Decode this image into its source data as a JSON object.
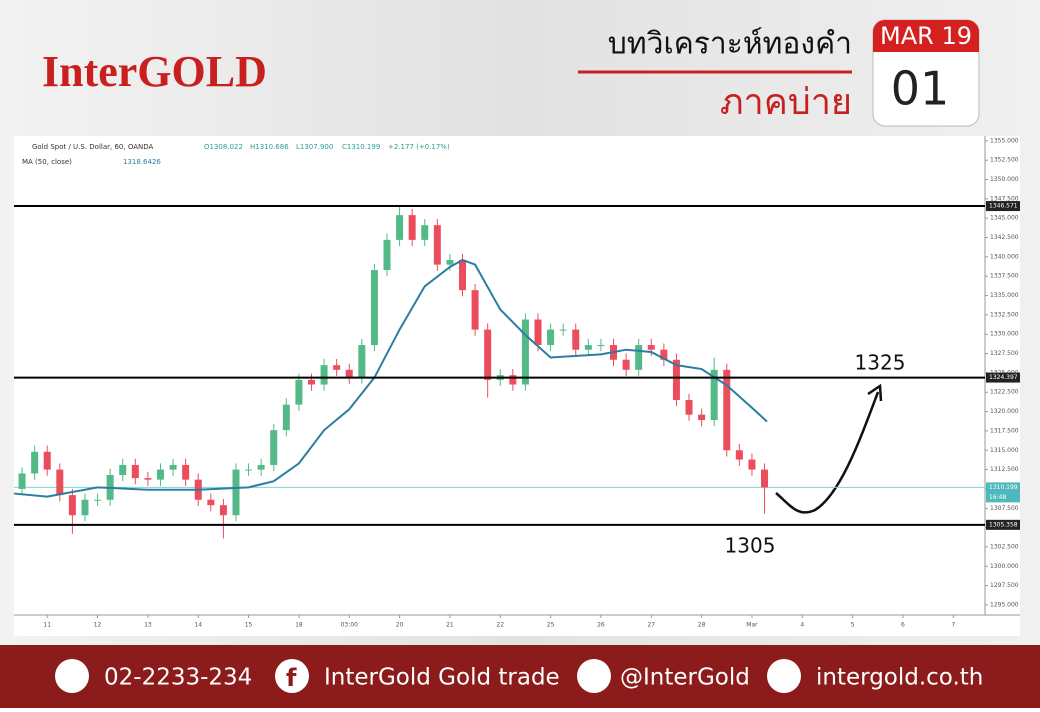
{
  "header": {
    "brand": "InterGOLD",
    "title": "บทวิเคราะห์ทองคำ",
    "subtitle": "ภาคบ่าย",
    "month": "MAR 19",
    "day": "01"
  },
  "chart_data": {
    "type": "candlestick",
    "symbol": "Gold Spot / U.S. Dollar, 60, OANDA",
    "ohlc_info": [
      "O1308.022",
      "H1310.686",
      "L1307.900",
      "C1310.199",
      "+2.177 (+0.17%)"
    ],
    "indicator": "MA (50, close)",
    "indicator_value": "1318.6426",
    "xlim": [
      -0.66,
      18.63
    ],
    "ylim": [
      1293.7,
      1355.5
    ],
    "xticks": [
      {
        "value": 0,
        "label": "11"
      },
      {
        "value": 1,
        "label": "12"
      },
      {
        "value": 2,
        "label": "13"
      },
      {
        "value": 3,
        "label": "14"
      },
      {
        "value": 4,
        "label": "15"
      },
      {
        "value": 5,
        "label": "18"
      },
      {
        "value": 6,
        "label": "03:00"
      },
      {
        "value": 7,
        "label": "20"
      },
      {
        "value": 8,
        "label": "21"
      },
      {
        "value": 9,
        "label": "22"
      },
      {
        "value": 10,
        "label": "25"
      },
      {
        "value": 11,
        "label": "26"
      },
      {
        "value": 12,
        "label": "27"
      },
      {
        "value": 13,
        "label": "28"
      },
      {
        "value": 14,
        "label": "Mar"
      },
      {
        "value": 15,
        "label": "4"
      },
      {
        "value": 16,
        "label": "5"
      },
      {
        "value": 17,
        "label": "6"
      },
      {
        "value": 18,
        "label": "7"
      }
    ],
    "yticks": [
      {
        "value": 1295,
        "label": "1295.000"
      },
      {
        "value": 1297.5,
        "label": "1297.500"
      },
      {
        "value": 1300,
        "label": "1300.000"
      },
      {
        "value": 1302.5,
        "label": "1302.500"
      },
      {
        "value": 1305,
        "label": "1305.000"
      },
      {
        "value": 1307.5,
        "label": "1307.500"
      },
      {
        "value": 1310,
        "label": "1310.000"
      },
      {
        "value": 1312.5,
        "label": "1312.500"
      },
      {
        "value": 1315,
        "label": "1315.000"
      },
      {
        "value": 1317.5,
        "label": "1317.500"
      },
      {
        "value": 1320,
        "label": "1320.000"
      },
      {
        "value": 1322.5,
        "label": "1322.500"
      },
      {
        "value": 1325,
        "label": "1325.000"
      },
      {
        "value": 1327.5,
        "label": "1327.500"
      },
      {
        "value": 1330,
        "label": "1330.000"
      },
      {
        "value": 1332.5,
        "label": "1332.500"
      },
      {
        "value": 1335,
        "label": "1335.000"
      },
      {
        "value": 1337.5,
        "label": "1337.500"
      },
      {
        "value": 1340,
        "label": "1340.000"
      },
      {
        "value": 1342.5,
        "label": "1342.500"
      },
      {
        "value": 1345,
        "label": "1345.000"
      },
      {
        "value": 1347.5,
        "label": "1347.500"
      },
      {
        "value": 1350,
        "label": "1350.000"
      },
      {
        "value": 1352.5,
        "label": "1352.500"
      },
      {
        "value": 1355,
        "label": "1355.000"
      }
    ],
    "up_color": "#53b987",
    "down_color": "#eb4d5c",
    "x": [
      -0.5,
      -0.25,
      0,
      0.25,
      0.5,
      0.75,
      1,
      1.25,
      1.5,
      1.75,
      2,
      2.25,
      2.5,
      2.75,
      3,
      3.25,
      3.5,
      3.75,
      4,
      4.25,
      4.5,
      4.75,
      5,
      5.25,
      5.5,
      5.75,
      6,
      6.25,
      6.5,
      6.75,
      7,
      7.25,
      7.5,
      7.75,
      8,
      8.25,
      8.5,
      8.75,
      9,
      9.25,
      9.5,
      9.75,
      10,
      10.25,
      10.5,
      10.75,
      11,
      11.25,
      11.5,
      11.75,
      12,
      12.25,
      12.5,
      12.75,
      13,
      13.25,
      13.5,
      13.75,
      14,
      14.25
    ],
    "open": [
      1310.0,
      1312.0,
      1314.8,
      1312.5,
      1309.2,
      1306.6,
      1308.6,
      1308.6,
      1311.8,
      1313.1,
      1311.4,
      1311.2,
      1312.5,
      1313.1,
      1311.2,
      1308.6,
      1307.9,
      1306.6,
      1312.5,
      1312.5,
      1313.1,
      1317.6,
      1320.9,
      1324.1,
      1323.5,
      1326.0,
      1325.4,
      1324.4,
      1328.6,
      1338.3,
      1342.2,
      1345.4,
      1342.2,
      1344.1,
      1339.0,
      1339.6,
      1335.7,
      1330.6,
      1324.1,
      1324.7,
      1323.5,
      1331.9,
      1328.6,
      1330.6,
      1330.6,
      1328.0,
      1328.6,
      1328.6,
      1326.7,
      1325.4,
      1328.6,
      1328.0,
      1326.7,
      1321.5,
      1319.6,
      1318.9,
      1325.4,
      1315.0,
      1313.8,
      1312.5
    ],
    "high": [
      1312.8,
      1315.6,
      1315.6,
      1313.3,
      1310.0,
      1309.4,
      1309.4,
      1312.6,
      1313.9,
      1313.9,
      1312.2,
      1313.3,
      1313.9,
      1313.9,
      1312.0,
      1309.4,
      1308.7,
      1313.3,
      1313.3,
      1313.9,
      1318.4,
      1321.7,
      1324.9,
      1324.9,
      1326.8,
      1326.8,
      1326.2,
      1329.4,
      1339.1,
      1343.0,
      1346.6,
      1346.2,
      1344.9,
      1344.9,
      1340.4,
      1340.4,
      1336.5,
      1331.4,
      1325.5,
      1325.5,
      1332.7,
      1332.7,
      1331.4,
      1331.4,
      1331.4,
      1329.4,
      1329.4,
      1329.4,
      1327.5,
      1329.4,
      1329.4,
      1328.8,
      1327.5,
      1322.3,
      1320.4,
      1327.0,
      1326.2,
      1315.8,
      1314.6,
      1313.3
    ],
    "low": [
      1309.2,
      1311.2,
      1311.7,
      1308.4,
      1304.2,
      1305.8,
      1307.8,
      1307.8,
      1311.0,
      1310.6,
      1310.4,
      1310.4,
      1311.7,
      1310.4,
      1307.8,
      1307.1,
      1303.6,
      1305.8,
      1311.7,
      1311.7,
      1312.3,
      1316.8,
      1320.1,
      1322.7,
      1322.7,
      1324.6,
      1323.6,
      1323.6,
      1327.8,
      1337.5,
      1341.4,
      1341.4,
      1341.4,
      1338.2,
      1338.2,
      1334.9,
      1329.8,
      1321.8,
      1323.3,
      1322.7,
      1322.7,
      1327.8,
      1327.8,
      1329.8,
      1327.2,
      1327.2,
      1327.8,
      1325.9,
      1324.6,
      1324.6,
      1327.2,
      1325.9,
      1320.7,
      1318.8,
      1318.1,
      1318.1,
      1314.2,
      1313.0,
      1311.7,
      1306.8
    ],
    "close": [
      1312.0,
      1314.8,
      1312.5,
      1309.2,
      1306.6,
      1308.6,
      1308.6,
      1311.8,
      1313.1,
      1311.4,
      1311.2,
      1312.5,
      1313.1,
      1311.2,
      1308.6,
      1307.9,
      1306.6,
      1312.5,
      1312.5,
      1313.1,
      1317.6,
      1320.9,
      1324.1,
      1323.5,
      1326.0,
      1325.4,
      1324.4,
      1328.6,
      1338.3,
      1342.2,
      1345.4,
      1342.2,
      1344.1,
      1339.0,
      1339.6,
      1335.7,
      1330.6,
      1324.1,
      1324.7,
      1323.5,
      1331.9,
      1328.6,
      1330.6,
      1330.6,
      1328.0,
      1328.6,
      1328.6,
      1326.7,
      1325.4,
      1328.6,
      1328.0,
      1326.7,
      1321.5,
      1319.6,
      1318.9,
      1325.4,
      1315.0,
      1313.8,
      1312.5,
      1310.2
    ],
    "ma": {
      "color": "#2b7da3",
      "x": [
        -0.66,
        0,
        1,
        2,
        3,
        4,
        4.5,
        5,
        5.5,
        6,
        6.5,
        7,
        7.5,
        8,
        8.25,
        8.5,
        9,
        9.5,
        10,
        11,
        11.5,
        12,
        12.5,
        13,
        13.5,
        14,
        14.3
      ],
      "values": [
        1309.4,
        1309.0,
        1310.2,
        1309.9,
        1309.9,
        1310.2,
        1311.0,
        1313.3,
        1317.6,
        1320.3,
        1324.4,
        1330.6,
        1336.2,
        1338.7,
        1339.6,
        1339.0,
        1333.2,
        1329.9,
        1327.0,
        1327.4,
        1328.0,
        1327.7,
        1326.0,
        1325.5,
        1323.4,
        1320.5,
        1318.7
      ]
    },
    "levels": [
      1346.571,
      1324.397,
      1305.358
    ],
    "last_price": 1310.199,
    "last_time": "16:48",
    "annotations": [
      "1325",
      "1305"
    ]
  },
  "footer": {
    "phone": "02-2233-234",
    "facebook": "InterGold Gold trade",
    "line": "@InterGold",
    "web": "intergold.co.th"
  }
}
